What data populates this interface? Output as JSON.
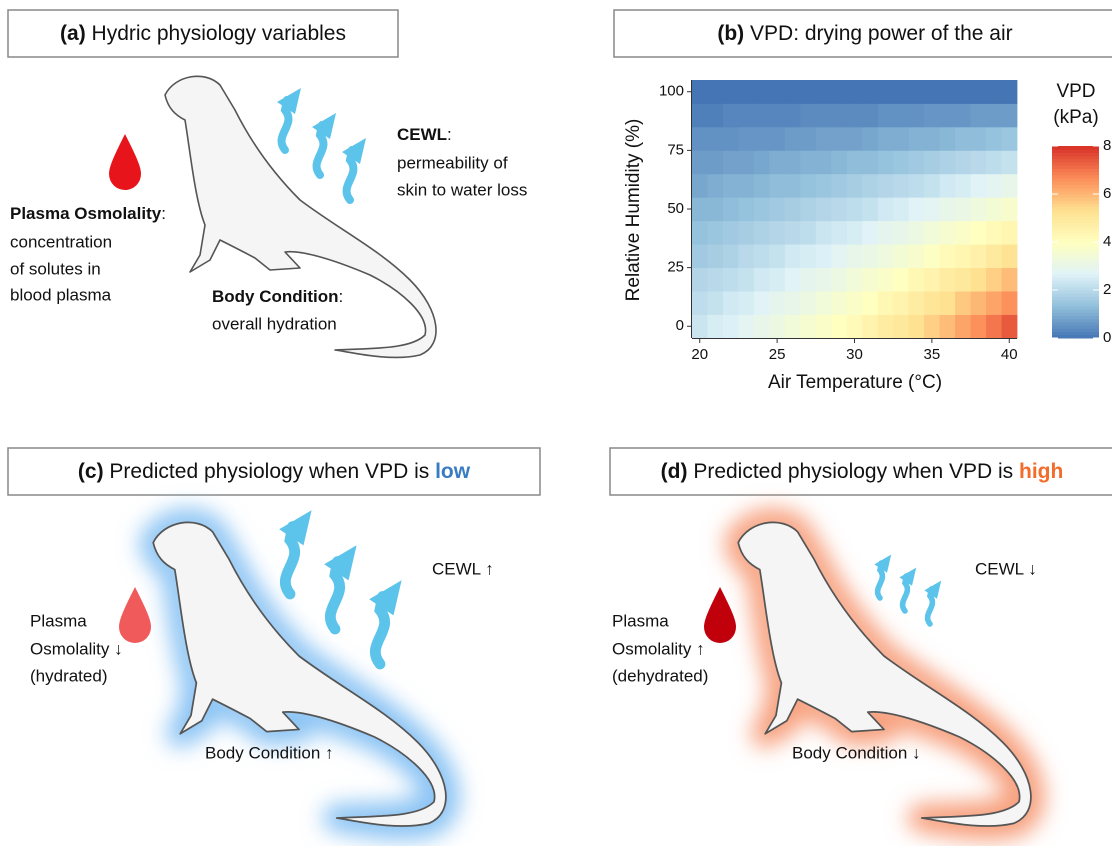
{
  "panels": {
    "a": {
      "label": "(a)",
      "title": "Hydric physiology variables",
      "osmolality": {
        "term": "Plasma Osmolality",
        "suffix": ":",
        "lines": [
          "concentration",
          "of solutes in",
          "blood plasma"
        ]
      },
      "cewl": {
        "term": "CEWL",
        "suffix": ":",
        "lines": [
          "permeability of",
          "skin to water loss"
        ]
      },
      "body": {
        "term": "Body Condition",
        "suffix": ":",
        "lines": [
          "overall hydration"
        ]
      }
    },
    "c": {
      "label": "(c)",
      "title": "Predicted physiology when VPD is",
      "emphasis": "low",
      "osmolality": [
        "Plasma",
        "Osmolality ↓",
        "(hydrated)"
      ],
      "cewl": "CEWL ↑",
      "body": "Body Condition ↑"
    },
    "d": {
      "label": "(d)",
      "title": "Predicted physiology when VPD is",
      "emphasis": "high",
      "osmolality": [
        "Plasma",
        "Osmolality ↑",
        "(dehydrated)"
      ],
      "cewl": "CEWL ↓",
      "body": "Body Condition ↓"
    }
  },
  "chart_data": {
    "type": "heatmap",
    "panel_label": "(b)",
    "title": "VPD: drying power of the air",
    "x_label": "Air Temperature (°C)",
    "y_label": "Relative Humidity (%)",
    "colorbar_title": [
      "VPD",
      "(kPa)"
    ],
    "x": [
      20,
      21,
      22,
      23,
      24,
      25,
      26,
      27,
      28,
      29,
      30,
      31,
      32,
      33,
      34,
      35,
      36,
      37,
      38,
      39,
      40
    ],
    "y": [
      0,
      10,
      20,
      30,
      40,
      50,
      60,
      70,
      80,
      90,
      100
    ],
    "z": [
      [
        2.3,
        2.5,
        2.6,
        2.8,
        3.0,
        3.2,
        3.4,
        3.6,
        3.8,
        4.0,
        4.2,
        4.5,
        4.8,
        5.0,
        5.3,
        5.6,
        5.9,
        6.3,
        6.6,
        7.0,
        7.4
      ],
      [
        2.1,
        2.2,
        2.4,
        2.5,
        2.7,
        2.9,
        3.0,
        3.2,
        3.4,
        3.6,
        3.8,
        4.0,
        4.3,
        4.5,
        4.8,
        5.1,
        5.3,
        5.7,
        6.0,
        6.3,
        6.6
      ],
      [
        1.9,
        2.0,
        2.1,
        2.2,
        2.4,
        2.5,
        2.7,
        2.9,
        3.0,
        3.2,
        3.4,
        3.6,
        3.8,
        4.0,
        4.3,
        4.5,
        4.8,
        5.0,
        5.3,
        5.6,
        5.9
      ],
      [
        1.6,
        1.7,
        1.8,
        2.0,
        2.1,
        2.2,
        2.4,
        2.5,
        2.6,
        2.8,
        3.0,
        3.1,
        3.3,
        3.5,
        3.7,
        3.9,
        4.2,
        4.4,
        4.6,
        4.9,
        5.2
      ],
      [
        1.4,
        1.5,
        1.6,
        1.7,
        1.8,
        1.9,
        2.0,
        2.1,
        2.3,
        2.4,
        2.5,
        2.7,
        2.9,
        3.0,
        3.2,
        3.4,
        3.6,
        3.8,
        4.0,
        4.2,
        4.4
      ],
      [
        1.2,
        1.2,
        1.3,
        1.4,
        1.5,
        1.6,
        1.7,
        1.8,
        1.9,
        2.0,
        2.1,
        2.2,
        2.4,
        2.5,
        2.7,
        2.8,
        3.0,
        3.1,
        3.3,
        3.5,
        3.7
      ],
      [
        0.9,
        1.0,
        1.1,
        1.1,
        1.2,
        1.3,
        1.3,
        1.4,
        1.5,
        1.6,
        1.7,
        1.8,
        1.9,
        2.0,
        2.1,
        2.2,
        2.4,
        2.5,
        2.7,
        2.8,
        3.0
      ],
      [
        0.7,
        0.7,
        0.8,
        0.8,
        0.9,
        1.0,
        1.0,
        1.1,
        1.1,
        1.2,
        1.3,
        1.3,
        1.4,
        1.5,
        1.6,
        1.7,
        1.8,
        1.9,
        2.0,
        2.1,
        2.2
      ],
      [
        0.5,
        0.5,
        0.5,
        0.6,
        0.6,
        0.6,
        0.7,
        0.7,
        0.8,
        0.8,
        0.8,
        0.9,
        1.0,
        1.0,
        1.1,
        1.1,
        1.2,
        1.3,
        1.3,
        1.4,
        1.5
      ],
      [
        0.2,
        0.2,
        0.3,
        0.3,
        0.3,
        0.3,
        0.3,
        0.4,
        0.4,
        0.4,
        0.4,
        0.4,
        0.5,
        0.5,
        0.5,
        0.6,
        0.6,
        0.6,
        0.7,
        0.7,
        0.7
      ],
      [
        0,
        0,
        0,
        0,
        0,
        0,
        0,
        0,
        0,
        0,
        0,
        0,
        0,
        0,
        0,
        0,
        0,
        0,
        0,
        0,
        0
      ]
    ],
    "xlim": [
      19.5,
      40.5
    ],
    "ylim": [
      -5,
      105
    ],
    "zlim": [
      0,
      8
    ],
    "xticks": [
      20,
      25,
      30,
      35,
      40
    ],
    "yticks": [
      0,
      25,
      50,
      75,
      100
    ],
    "zticks": [
      0,
      2,
      4,
      6,
      8
    ],
    "colormap": [
      "#4575b4",
      "#91bfdb",
      "#e0f3f8",
      "#ffffbf",
      "#fee090",
      "#fc8d59",
      "#d73027"
    ]
  }
}
